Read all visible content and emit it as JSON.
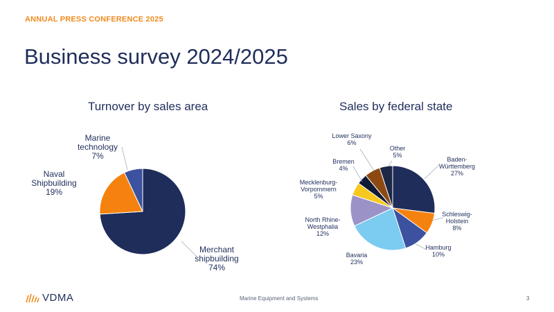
{
  "header": {
    "kicker": "ANNUAL PRESS CONFERENCE 2025",
    "title": "Business survey 2024/2025"
  },
  "chart_data": [
    {
      "type": "pie",
      "title": "Turnover by sales area",
      "slices": [
        {
          "label_lines": [
            "Merchant",
            "shipbuilding",
            "74%"
          ],
          "value": 74,
          "color": "#1f2d5a"
        },
        {
          "label_lines": [
            "Naval",
            "Shipbuilding",
            "19%"
          ],
          "value": 19,
          "color": "#f5820f"
        },
        {
          "label_lines": [
            "Marine",
            "technology",
            "7%"
          ],
          "value": 7,
          "color": "#3c52a0"
        }
      ]
    },
    {
      "type": "pie",
      "title": "Sales by federal state",
      "slices": [
        {
          "label_lines": [
            "Baden-",
            "Württemberg",
            "27%"
          ],
          "value": 27,
          "color": "#1f2d5a"
        },
        {
          "label_lines": [
            "Schleswig-",
            "Holstein",
            "8%"
          ],
          "value": 8,
          "color": "#f5820f"
        },
        {
          "label_lines": [
            "Hamburg",
            "10%"
          ],
          "value": 10,
          "color": "#3c52a0"
        },
        {
          "label_lines": [
            "Bavaria",
            "23%"
          ],
          "value": 23,
          "color": "#7ccbf0"
        },
        {
          "label_lines": [
            "North Rhine-",
            "Westphalia",
            "12%"
          ],
          "value": 12,
          "color": "#9b92c8"
        },
        {
          "label_lines": [
            "Mecklenburg-",
            "Vorpommern",
            "5%"
          ],
          "value": 5,
          "color": "#f7c81e"
        },
        {
          "label_lines": [
            "Bremen",
            "4%"
          ],
          "value": 4,
          "color": "#0f1a36"
        },
        {
          "label_lines": [
            "Lower Saxony",
            "6%"
          ],
          "value": 6,
          "color": "#8c4a12"
        },
        {
          "label_lines": [
            "Other",
            "5%"
          ],
          "value": 5,
          "color": "#1d2746"
        }
      ]
    }
  ],
  "footer": {
    "brand": "VDMA",
    "center_text": "Marine Equipment and Systems",
    "page_number": "3"
  },
  "colors": {
    "accent": "#f08a1c",
    "navy": "#1f2d5a"
  }
}
